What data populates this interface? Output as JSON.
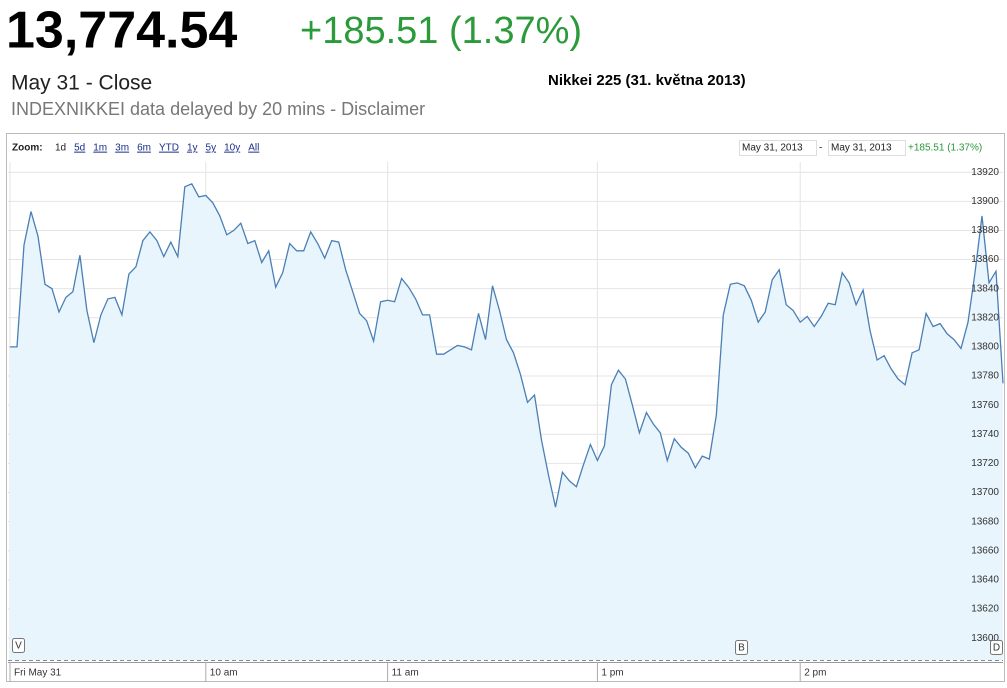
{
  "header": {
    "price": "13,774.54",
    "change": "+185.51 (1.37%)",
    "status": "May 31 - Close",
    "source": "INDEXNIKKEI data delayed by 20 mins - Disclaimer"
  },
  "toolbar": {
    "zoom_label": "Zoom:",
    "zoom_options": [
      "1d",
      "5d",
      "1m",
      "3m",
      "6m",
      "YTD",
      "1y",
      "5y",
      "10y",
      "All"
    ],
    "range_start": "May 31, 2013",
    "range_sep": "-",
    "range_end": "May 31, 2013",
    "range_change": "+185.51 (1.37%)"
  },
  "markers": [
    "V",
    "B",
    "D"
  ],
  "chart_data": {
    "type": "line",
    "title": "Nikkei 225 (31. května 2013)",
    "categories": [
      "Fri May 31",
      null,
      null,
      null,
      null,
      null,
      null,
      null,
      null,
      null,
      null,
      null,
      null,
      null,
      null,
      null,
      null,
      null,
      null,
      null,
      null,
      null,
      null,
      null,
      null,
      null,
      null,
      null,
      "10 am",
      null,
      null,
      null,
      null,
      null,
      null,
      null,
      null,
      null,
      null,
      null,
      null,
      null,
      null,
      null,
      null,
      null,
      null,
      null,
      null,
      null,
      null,
      null,
      null,
      null,
      "11 am",
      null,
      null,
      null,
      null,
      null,
      null,
      null,
      null,
      null,
      null,
      null,
      null,
      null,
      null,
      null,
      null,
      null,
      null,
      null,
      null,
      null,
      null,
      null,
      null,
      null,
      null,
      null,
      null,
      null,
      "1 pm",
      null,
      null,
      null,
      null,
      null,
      null,
      null,
      null,
      null,
      null,
      null,
      null,
      null,
      null,
      null,
      null,
      null,
      null,
      null,
      null,
      null,
      null,
      null,
      null,
      null,
      null,
      null,
      null,
      "2 pm",
      null,
      null,
      null,
      null,
      null,
      null,
      null,
      null,
      null,
      null,
      null,
      null,
      null,
      null,
      null,
      null,
      null,
      null,
      null,
      null,
      null,
      null,
      null,
      null,
      null,
      null,
      null,
      null,
      null
    ],
    "values": [
      13800,
      13800,
      13870,
      13893,
      13876,
      13843,
      13840,
      13824,
      13834,
      13838,
      13863,
      13825,
      13803,
      13822,
      13833,
      13834,
      13822,
      13850,
      13855,
      13873,
      13879,
      13873,
      13862,
      13872,
      13862,
      13910,
      13912,
      13903,
      13904,
      13899,
      13890,
      13877,
      13880,
      13885,
      13871,
      13873,
      13858,
      13866,
      13841,
      13851,
      13871,
      13866,
      13866,
      13879,
      13871,
      13861,
      13873,
      13872,
      13853,
      13838,
      13823,
      13818,
      13804,
      13831,
      13832,
      13831,
      13847,
      13841,
      13833,
      13822,
      13822,
      13795,
      13795,
      13798,
      13801,
      13800,
      13798,
      13823,
      13805,
      13842,
      13825,
      13805,
      13796,
      13781,
      13762,
      13767,
      13736,
      13712,
      13690,
      13714,
      13708,
      13704,
      13719,
      13733,
      13722,
      13732,
      13774,
      13784,
      13778,
      13760,
      13741,
      13755,
      13747,
      13741,
      13722,
      13737,
      13731,
      13727,
      13717,
      13725,
      13723,
      13753,
      13822,
      13843,
      13844,
      13842,
      13832,
      13817,
      13824,
      13846,
      13853,
      13829,
      13825,
      13817,
      13821,
      13814,
      13821,
      13830,
      13829,
      13851,
      13844,
      13829,
      13839,
      13811,
      13791,
      13794,
      13785,
      13778,
      13774,
      13796,
      13798,
      13823,
      13814,
      13816,
      13809,
      13805,
      13799,
      13817,
      13851,
      13890,
      13844,
      13852,
      13775
    ],
    "color": "#4a7fb5",
    "fill": "#e9f5fc",
    "ylim": [
      13585,
      13927
    ],
    "yticks": [
      13600,
      13620,
      13640,
      13660,
      13680,
      13700,
      13720,
      13740,
      13760,
      13780,
      13800,
      13820,
      13840,
      13860,
      13880,
      13900,
      13920
    ],
    "grid": true
  }
}
